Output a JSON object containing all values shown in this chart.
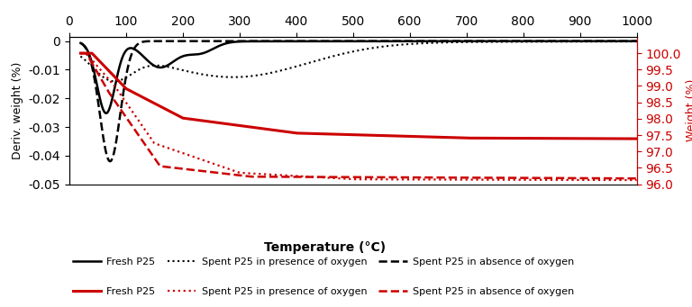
{
  "xlim": [
    0,
    1000
  ],
  "ylim_left": [
    -0.05,
    0.0015
  ],
  "ylim_right": [
    96,
    100.5
  ],
  "yticks_left": [
    0,
    -0.01,
    -0.02,
    -0.03,
    -0.04,
    -0.05
  ],
  "yticks_right": [
    96,
    96.5,
    97,
    97.5,
    98,
    98.5,
    99,
    99.5,
    100
  ],
  "xticks": [
    0,
    100,
    200,
    300,
    400,
    500,
    600,
    700,
    800,
    900,
    1000
  ],
  "xlabel": "Temperature (°C)",
  "ylabel_left": "Deriv. weight (%)",
  "ylabel_right": "Weight (%)",
  "color_black": "#000000",
  "color_red": "#cc0000",
  "background": "#ffffff"
}
